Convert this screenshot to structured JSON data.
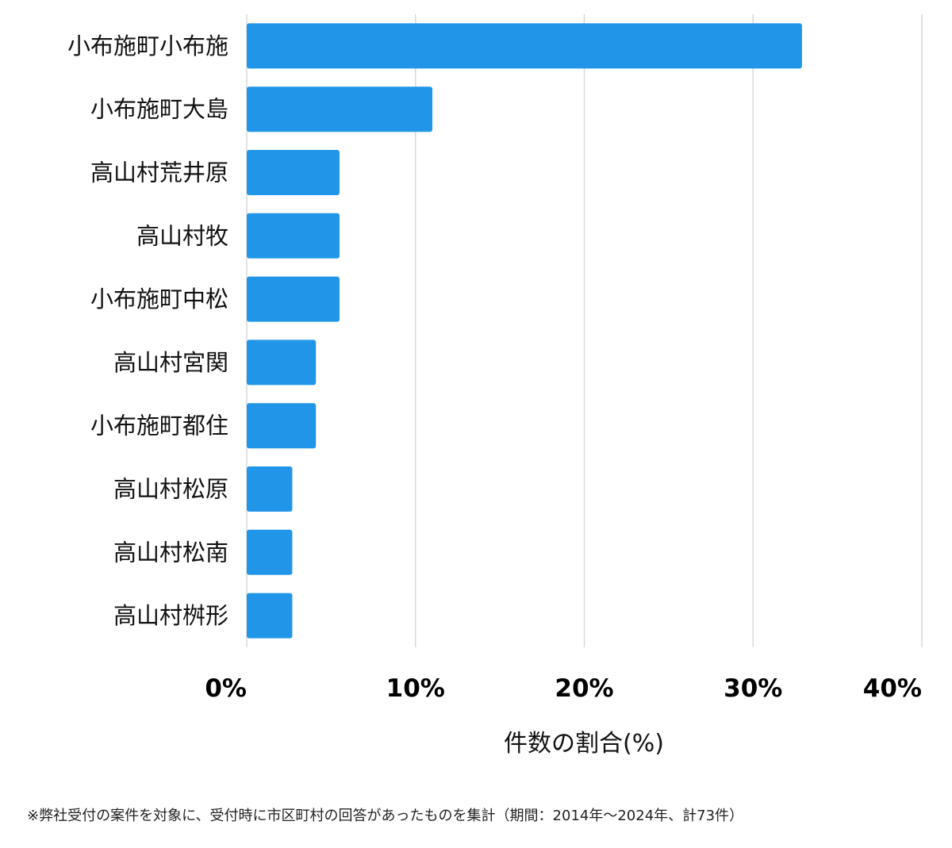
{
  "chart_data": {
    "type": "bar",
    "orientation": "horizontal",
    "categories": [
      "小布施町小布施",
      "小布施町大島",
      "高山村荒井原",
      "高山村牧",
      "小布施町中松",
      "高山村宮関",
      "小布施町都住",
      "高山村松原",
      "高山村松南",
      "高山村桝形"
    ],
    "values": [
      32.9,
      11.0,
      5.5,
      5.5,
      5.5,
      4.1,
      4.1,
      2.7,
      2.7,
      2.7
    ],
    "xlim": [
      0,
      40
    ],
    "xticks": [
      "0%",
      "10%",
      "20%",
      "30%",
      "40%"
    ],
    "xlabel": "件数の割合(%)",
    "bar_color": "#2196e8",
    "grid": true
  },
  "footnote": "※弊社受付の案件を対象に、受付時に市区町村の回答があったものを集計（期間：2014年〜2024年、計73件）"
}
